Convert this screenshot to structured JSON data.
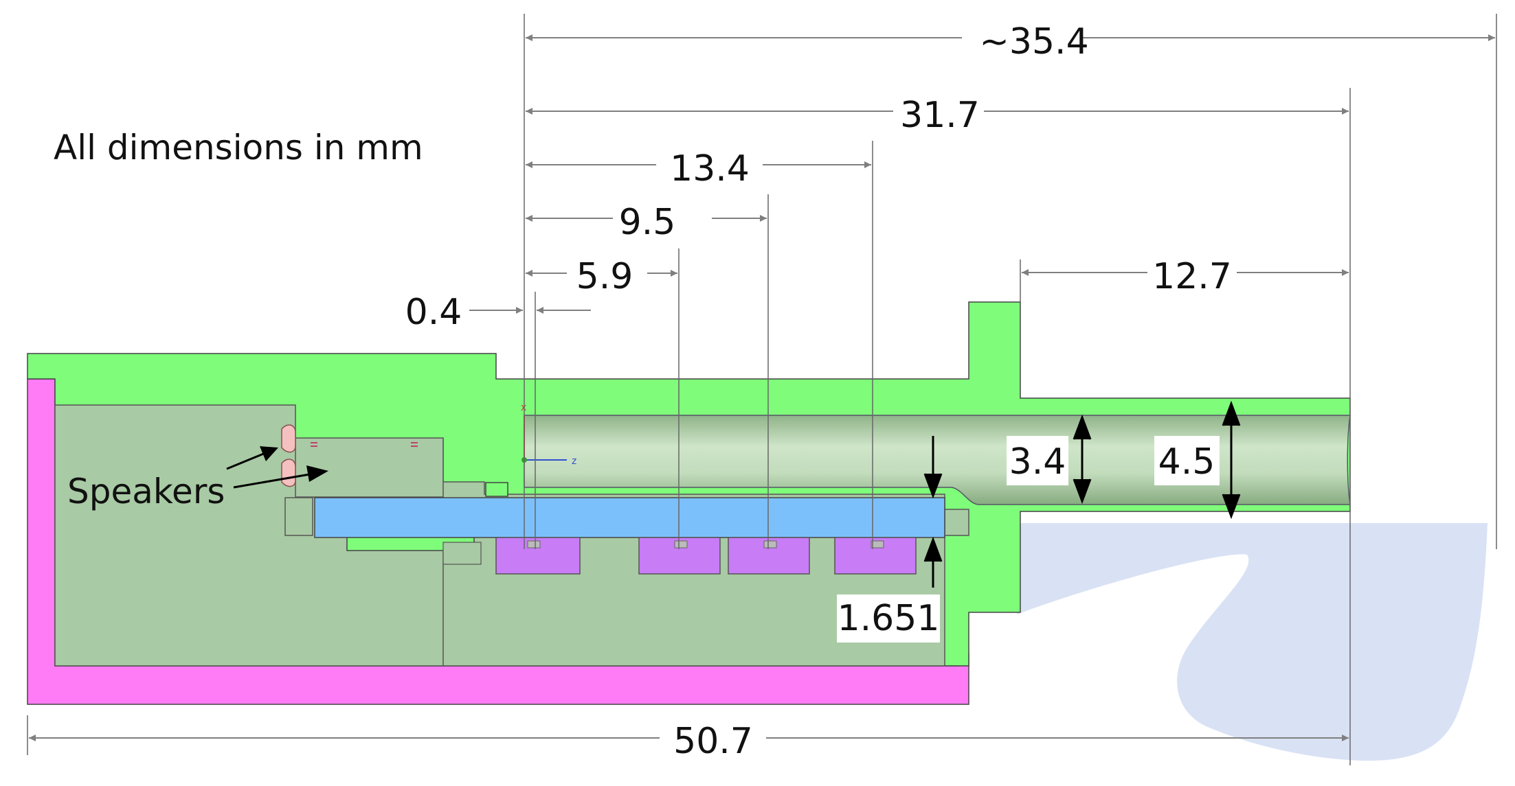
{
  "note": "All dimensions in mm",
  "speakers_label": "Speakers",
  "dims": {
    "overall_length": "~35.4",
    "bore_length": "31.7",
    "d13_4": "13.4",
    "d9_5": "9.5",
    "d5_9": "5.9",
    "d0_4": "0.4",
    "d12_7": "12.7",
    "d3_4": "3.4",
    "d4_5": "4.5",
    "d1_651": "1.651",
    "total_width": "50.7"
  },
  "axis": {
    "x": "x",
    "z": "z"
  },
  "colors": {
    "housing_green": "#7efc7a",
    "board_blue": "#7cc0fb",
    "magenta": "#ff7cf6",
    "purple": "#c87cf6",
    "sage": "#a8caa4",
    "ear_shape": "#d9e2f4",
    "bore": "#a8c8a0"
  }
}
